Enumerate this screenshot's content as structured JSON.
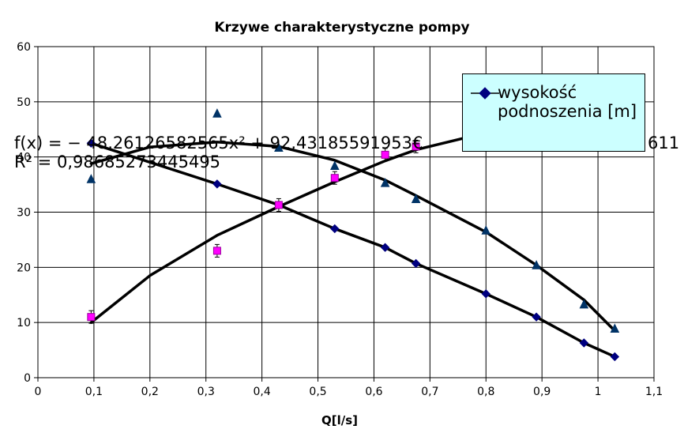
{
  "chart_data": {
    "type": "scatter",
    "title": "Krzywe charakterystyczne pompy",
    "xlabel": "Q[l/s]",
    "ylabel": "",
    "xlim": [
      0,
      1.1
    ],
    "ylim": [
      0,
      60
    ],
    "x_ticks": [
      "0",
      "0,1",
      "0,2",
      "0,3",
      "0,4",
      "0,5",
      "0,6",
      "0,7",
      "0,8",
      "0,9",
      "1",
      "1,1"
    ],
    "y_ticks": [
      "0",
      "10",
      "20",
      "30",
      "40",
      "50",
      "60"
    ],
    "grid": true,
    "legend_position": "top-right",
    "series": [
      {
        "name": "wysokość podnoszenia [m]",
        "marker": "diamond",
        "color": "#000080",
        "x": [
          0.095,
          0.32,
          0.43,
          0.53,
          0.62,
          0.675,
          0.8,
          0.89,
          0.975,
          1.03
        ],
        "y": [
          42.5,
          35.1,
          31.3,
          27.0,
          23.6,
          20.7,
          15.2,
          11.0,
          6.3,
          3.8
        ]
      },
      {
        "marker": "triangle",
        "color": "#003366",
        "x": [
          0.095,
          0.32,
          0.43,
          0.53,
          0.62,
          0.675,
          0.8,
          0.89,
          0.975,
          1.03
        ],
        "y": [
          35.9,
          47.8,
          41.6,
          38.3,
          35.2,
          32.3,
          26.6,
          20.3,
          13.2,
          8.8
        ]
      },
      {
        "marker": "square",
        "color": "#ff00ff",
        "x": [
          0.095,
          0.32,
          0.43,
          0.53,
          0.62,
          0.675
        ],
        "y": [
          11.0,
          23.0,
          31.3,
          36.2,
          40.4,
          41.9
        ]
      }
    ],
    "trendlines": [
      {
        "x": [
          0.095,
          0.32,
          0.43,
          0.53,
          0.62,
          0.675,
          0.8,
          0.89,
          0.975,
          1.03
        ],
        "y": [
          42.5,
          35.1,
          31.3,
          27.0,
          23.6,
          20.7,
          15.2,
          11.0,
          6.3,
          3.8
        ]
      },
      {
        "x": [
          0.095,
          0.2,
          0.32,
          0.43,
          0.53,
          0.62,
          0.675,
          0.8,
          0.89,
          0.975,
          1.03
        ],
        "y": [
          38.8,
          41.8,
          42.7,
          41.9,
          39.4,
          35.8,
          33.0,
          26.4,
          20.4,
          14.1,
          8.5
        ]
      },
      {
        "x": [
          0.095,
          0.2,
          0.32,
          0.43,
          0.53,
          0.62,
          0.675,
          0.76
        ],
        "y": [
          10.0,
          18.5,
          25.8,
          31.0,
          35.5,
          39.3,
          41.3,
          43.4
        ]
      }
    ],
    "annotations": [
      "f(x) = − 48,26126582565x² + 92,43185591953€",
      "R² = 0,98685273445495",
      "611"
    ]
  }
}
